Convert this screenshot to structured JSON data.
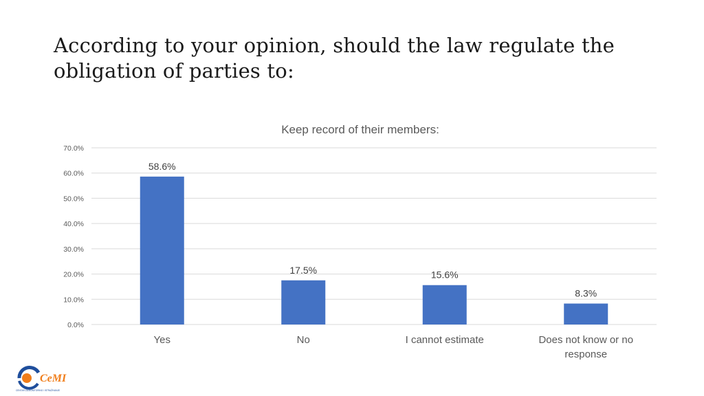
{
  "slide": {
    "title": "According to your opinion, should the law regulate the obligation of parties to:"
  },
  "logo": {
    "text": "CeMI",
    "tagline": "CENTAR ZA MONITORING I ISTRAŽIVANJE"
  },
  "colors": {
    "bar": "#4472C4",
    "grid": "#d9d9d9",
    "axis_text": "#595959",
    "logo_orange": "#F07D1A",
    "logo_blue": "#1F4E9C"
  },
  "chart_data": {
    "type": "bar",
    "title": "Keep record of their members:",
    "categories": [
      "Yes",
      "No",
      "I cannot estimate",
      "Does not know or no response"
    ],
    "values": [
      58.6,
      17.5,
      15.6,
      8.3
    ],
    "data_labels": [
      "58.6%",
      "17.5%",
      "15.6%",
      "8.3%"
    ],
    "ylim": [
      0,
      70
    ],
    "yticks": [
      0,
      10,
      20,
      30,
      40,
      50,
      60,
      70
    ],
    "ytick_labels": [
      "0.0%",
      "10.0%",
      "20.0%",
      "30.0%",
      "40.0%",
      "50.0%",
      "60.0%",
      "70.0%"
    ],
    "grid": true,
    "legend": "none"
  }
}
